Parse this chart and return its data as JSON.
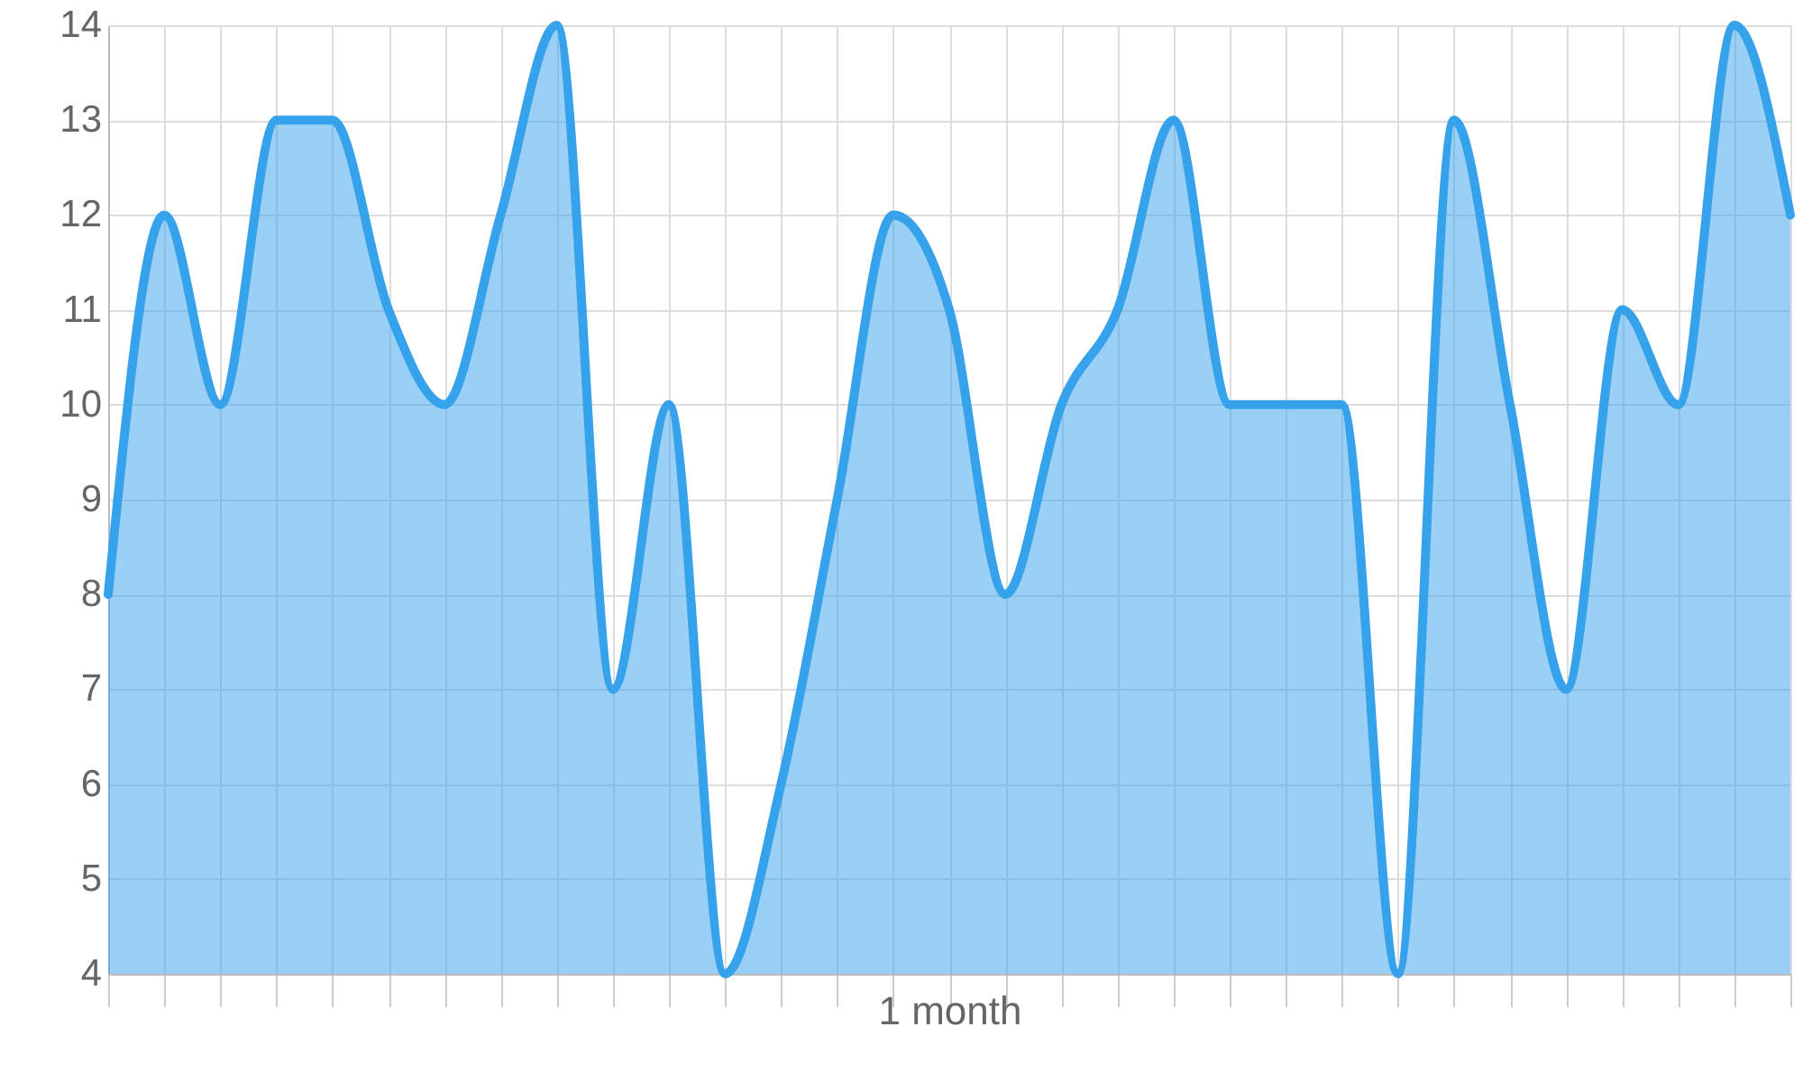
{
  "chart_data": {
    "type": "area",
    "xlabel": "1 month",
    "categories": [
      null,
      null,
      null,
      null,
      null,
      null,
      null,
      null,
      null,
      null,
      null,
      null,
      null,
      null,
      null,
      null,
      null,
      null,
      null,
      null,
      null,
      null,
      null,
      null,
      null,
      null,
      null,
      null,
      null,
      null,
      null
    ],
    "series": [
      {
        "color": "#36a2eb",
        "values": [
          8,
          12,
          10,
          13,
          13,
          11,
          10,
          12,
          14,
          7,
          10,
          4,
          6,
          9,
          12,
          11,
          8,
          10,
          11,
          13,
          10,
          10,
          10,
          4,
          13,
          10,
          7,
          11,
          10,
          14,
          12
        ]
      }
    ],
    "ylim": [
      4,
      14
    ],
    "yticks": [
      4,
      5,
      6,
      7,
      8,
      9,
      10,
      11,
      12,
      13,
      14
    ],
    "grid": true,
    "tick_labels": "y"
  }
}
